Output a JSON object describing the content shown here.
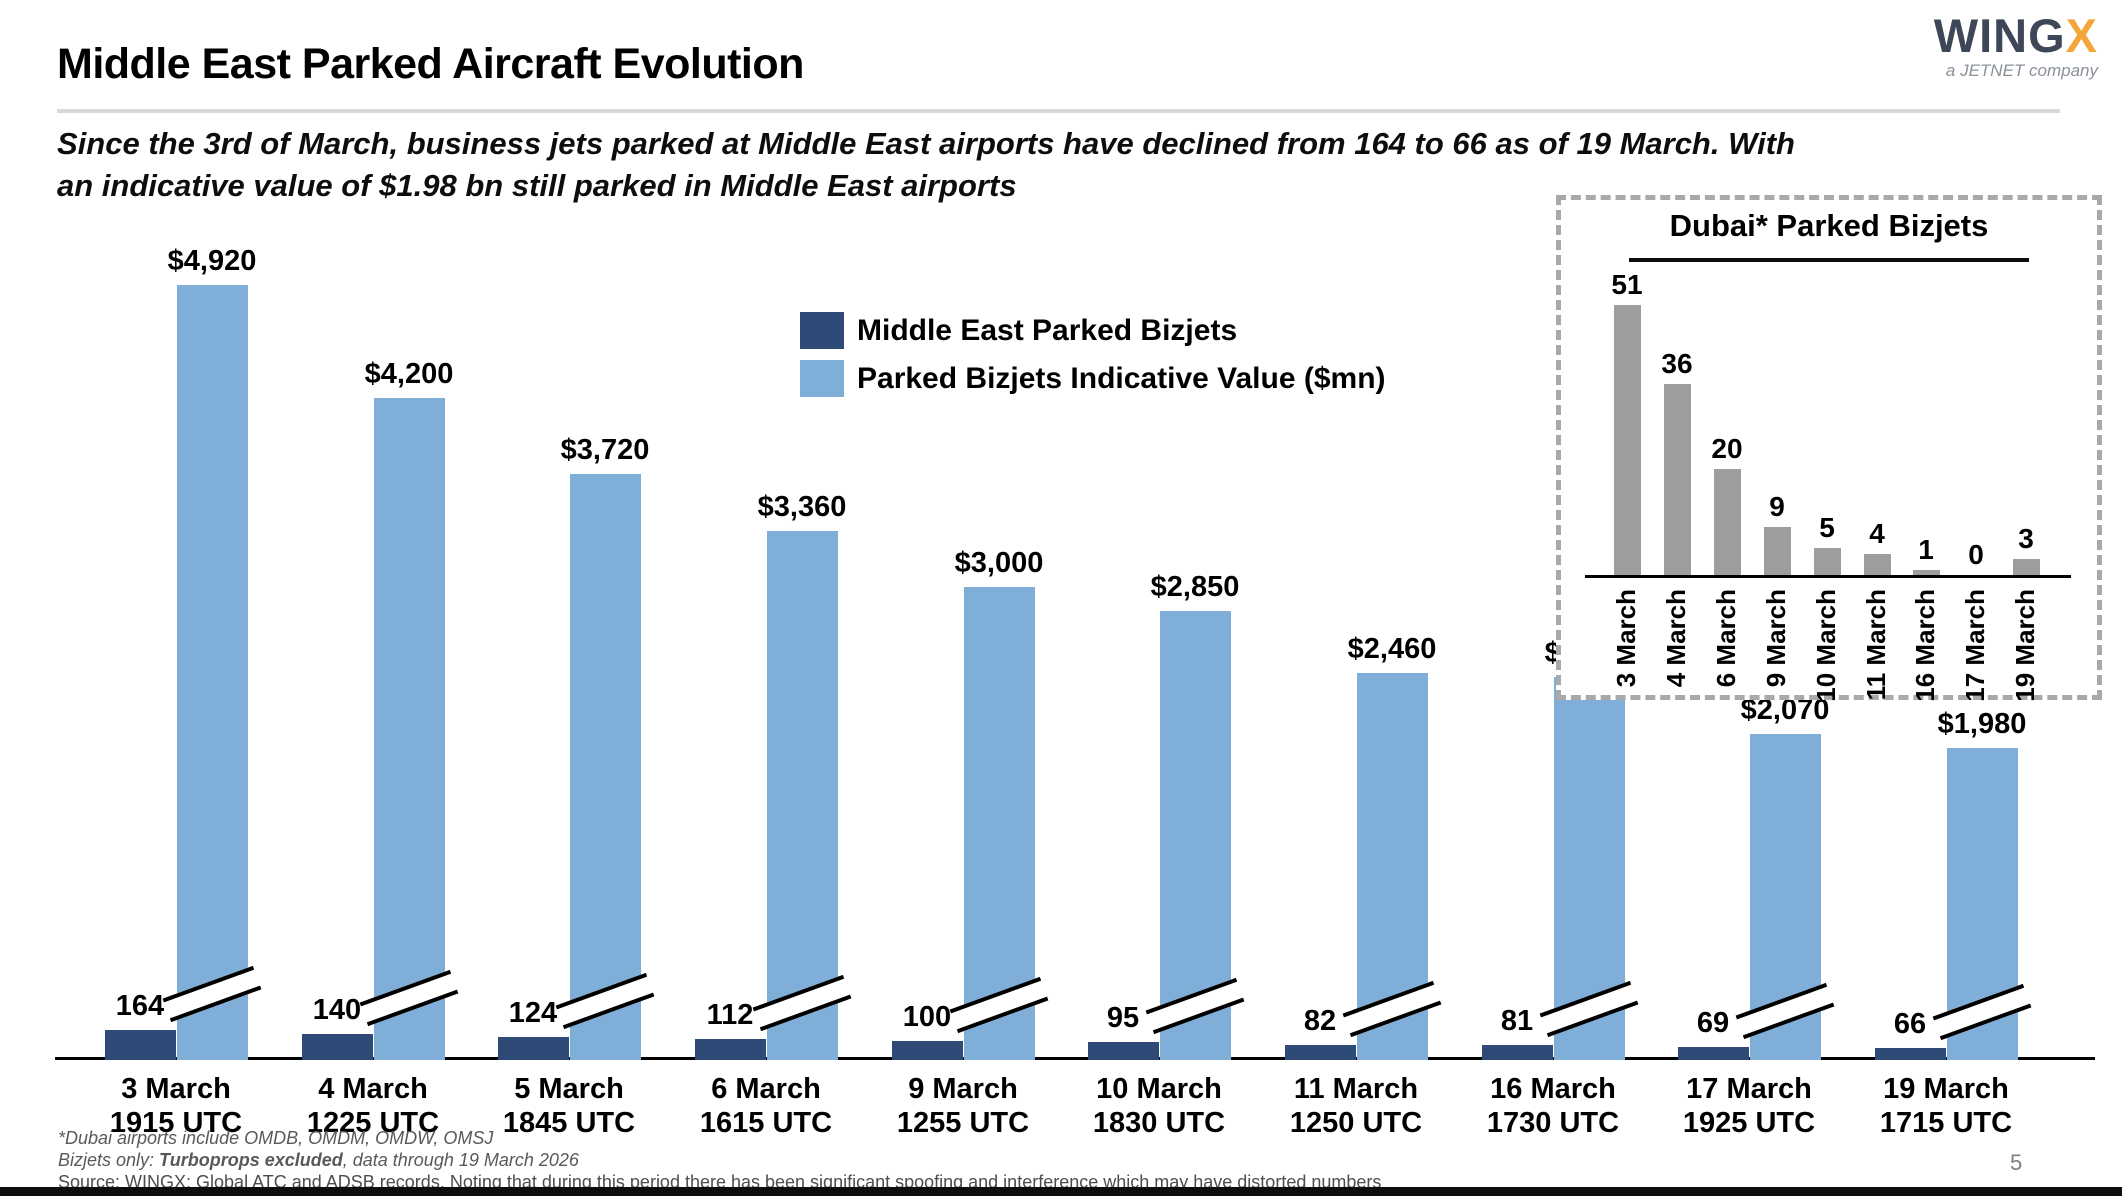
{
  "header": {
    "title": "Middle East Parked Aircraft Evolution",
    "subtitle_line1": "Since the 3rd of March, business jets parked at Middle East airports have declined from 164 to 66 as of 19 March. With",
    "subtitle_line2": "an indicative value of $1.98 bn still parked in Middle East airports",
    "logo": {
      "wing": "WING",
      "x": "X",
      "tagline": "a JETNET company"
    }
  },
  "legend": {
    "items": [
      {
        "label": "Middle East Parked Bizjets",
        "color": "#2e4a76"
      },
      {
        "label": "Parked Bizjets Indicative Value ($mn)",
        "color": "#7fafd9"
      }
    ]
  },
  "chart_data": [
    {
      "type": "bar",
      "title": "Middle East Parked Aircraft Evolution",
      "categories": [
        {
          "date": "3 March",
          "time": "1915 UTC"
        },
        {
          "date": "4 March",
          "time": "1225 UTC"
        },
        {
          "date": "5 March",
          "time": "1845 UTC"
        },
        {
          "date": "6 March",
          "time": "1615 UTC"
        },
        {
          "date": "9 March",
          "time": "1255 UTC"
        },
        {
          "date": "10 March",
          "time": "1830 UTC"
        },
        {
          "date": "11 March",
          "time": "1250 UTC"
        },
        {
          "date": "16 March",
          "time": "1730 UTC"
        },
        {
          "date": "17 March",
          "time": "1925 UTC"
        },
        {
          "date": "19 March",
          "time": "1715 UTC"
        }
      ],
      "series": [
        {
          "name": "Middle East Parked Bizjets",
          "color": "#2e4a76",
          "values": [
            164,
            140,
            124,
            112,
            100,
            95,
            82,
            81,
            69,
            66
          ],
          "labels": [
            "164",
            "140",
            "124",
            "112",
            "100",
            "95",
            "82",
            "81",
            "69",
            "66"
          ]
        },
        {
          "name": "Parked Bizjets Indicative Value ($mn)",
          "color": "#7fafd9",
          "values": [
            4920,
            4200,
            3720,
            3360,
            3000,
            2850,
            2460,
            2430,
            2070,
            1980
          ],
          "labels": [
            "$4,920",
            "$4,200",
            "$3,720",
            "$3,360",
            "$3,000",
            "$2,850",
            "$2,460",
            "$2,430",
            "$2,070",
            "$1,980"
          ]
        }
      ],
      "axis_break_on_value_bars": true,
      "legend_position": "top-center",
      "grid": false
    },
    {
      "type": "bar",
      "title": "Dubai* Parked Bizjets",
      "categories": [
        "3 March",
        "4 March",
        "6 March",
        "9 March",
        "10 March",
        "11 March",
        "16 March",
        "17 March",
        "19 March"
      ],
      "values": [
        51,
        36,
        20,
        9,
        5,
        4,
        1,
        0,
        3
      ],
      "labels": [
        "51",
        "36",
        "20",
        "9",
        "5",
        "4",
        "1",
        "0",
        "3"
      ],
      "color": "#9e9e9e",
      "grid": false
    }
  ],
  "footnotes": {
    "line1": "*Dubai airports include OMDB, OMDM, OMDW, OMSJ",
    "line2_prefix": "Bizjets only: ",
    "line2_bold": "Turboprops excluded",
    "line2_suffix": ", data through 19 March 2026",
    "line3": "Source: WINGX; Global ATC and ADSB records. Noting that during this period there has been significant spoofing and interference which may have distorted numbers"
  },
  "page_number": "5"
}
